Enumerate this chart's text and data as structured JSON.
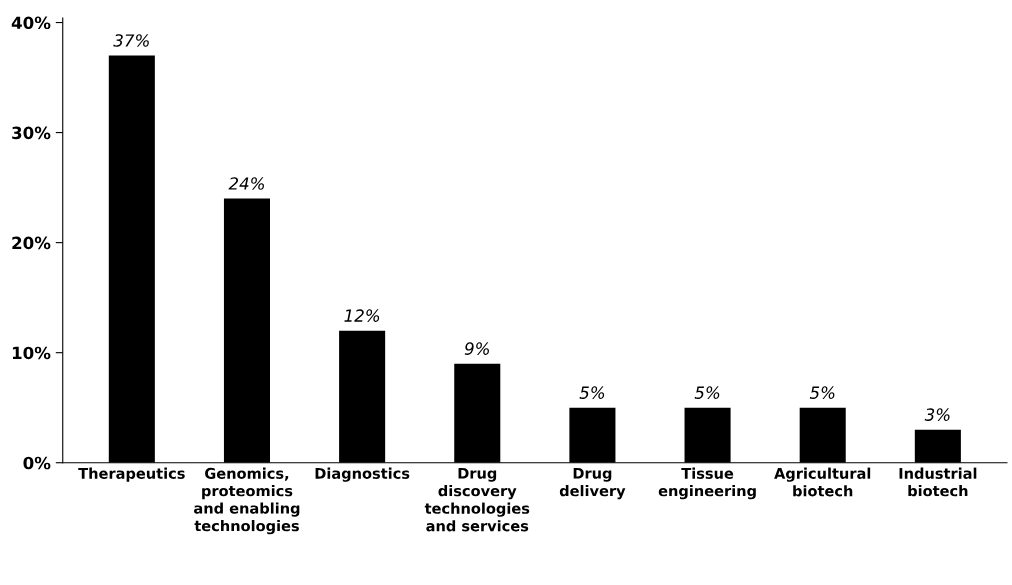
{
  "chart_data": {
    "type": "bar",
    "categories": [
      "Therapeutics",
      "Genomics,\nproteomics\nand enabling\ntechnologies",
      "Diagnostics",
      "Drug\ndiscovery\ntechnologies\nand services",
      "Drug\ndelivery",
      "Tissue\nengineering",
      "Agricultural\nbiotech",
      "Industrial\nbiotech"
    ],
    "values": [
      37,
      24,
      12,
      9,
      5,
      5,
      5,
      3
    ],
    "value_labels": [
      "37%",
      "24%",
      "12%",
      "9%",
      "5%",
      "5%",
      "5%",
      "3%"
    ],
    "color": "#000000",
    "ylim": [
      0,
      40.4
    ],
    "yticks": [
      {
        "value": 0,
        "label": "0%"
      },
      {
        "value": 10,
        "label": "10%"
      },
      {
        "value": 20,
        "label": "20%"
      },
      {
        "value": 30,
        "label": "30%"
      },
      {
        "value": 40,
        "label": "40%"
      }
    ],
    "grid": false
  }
}
